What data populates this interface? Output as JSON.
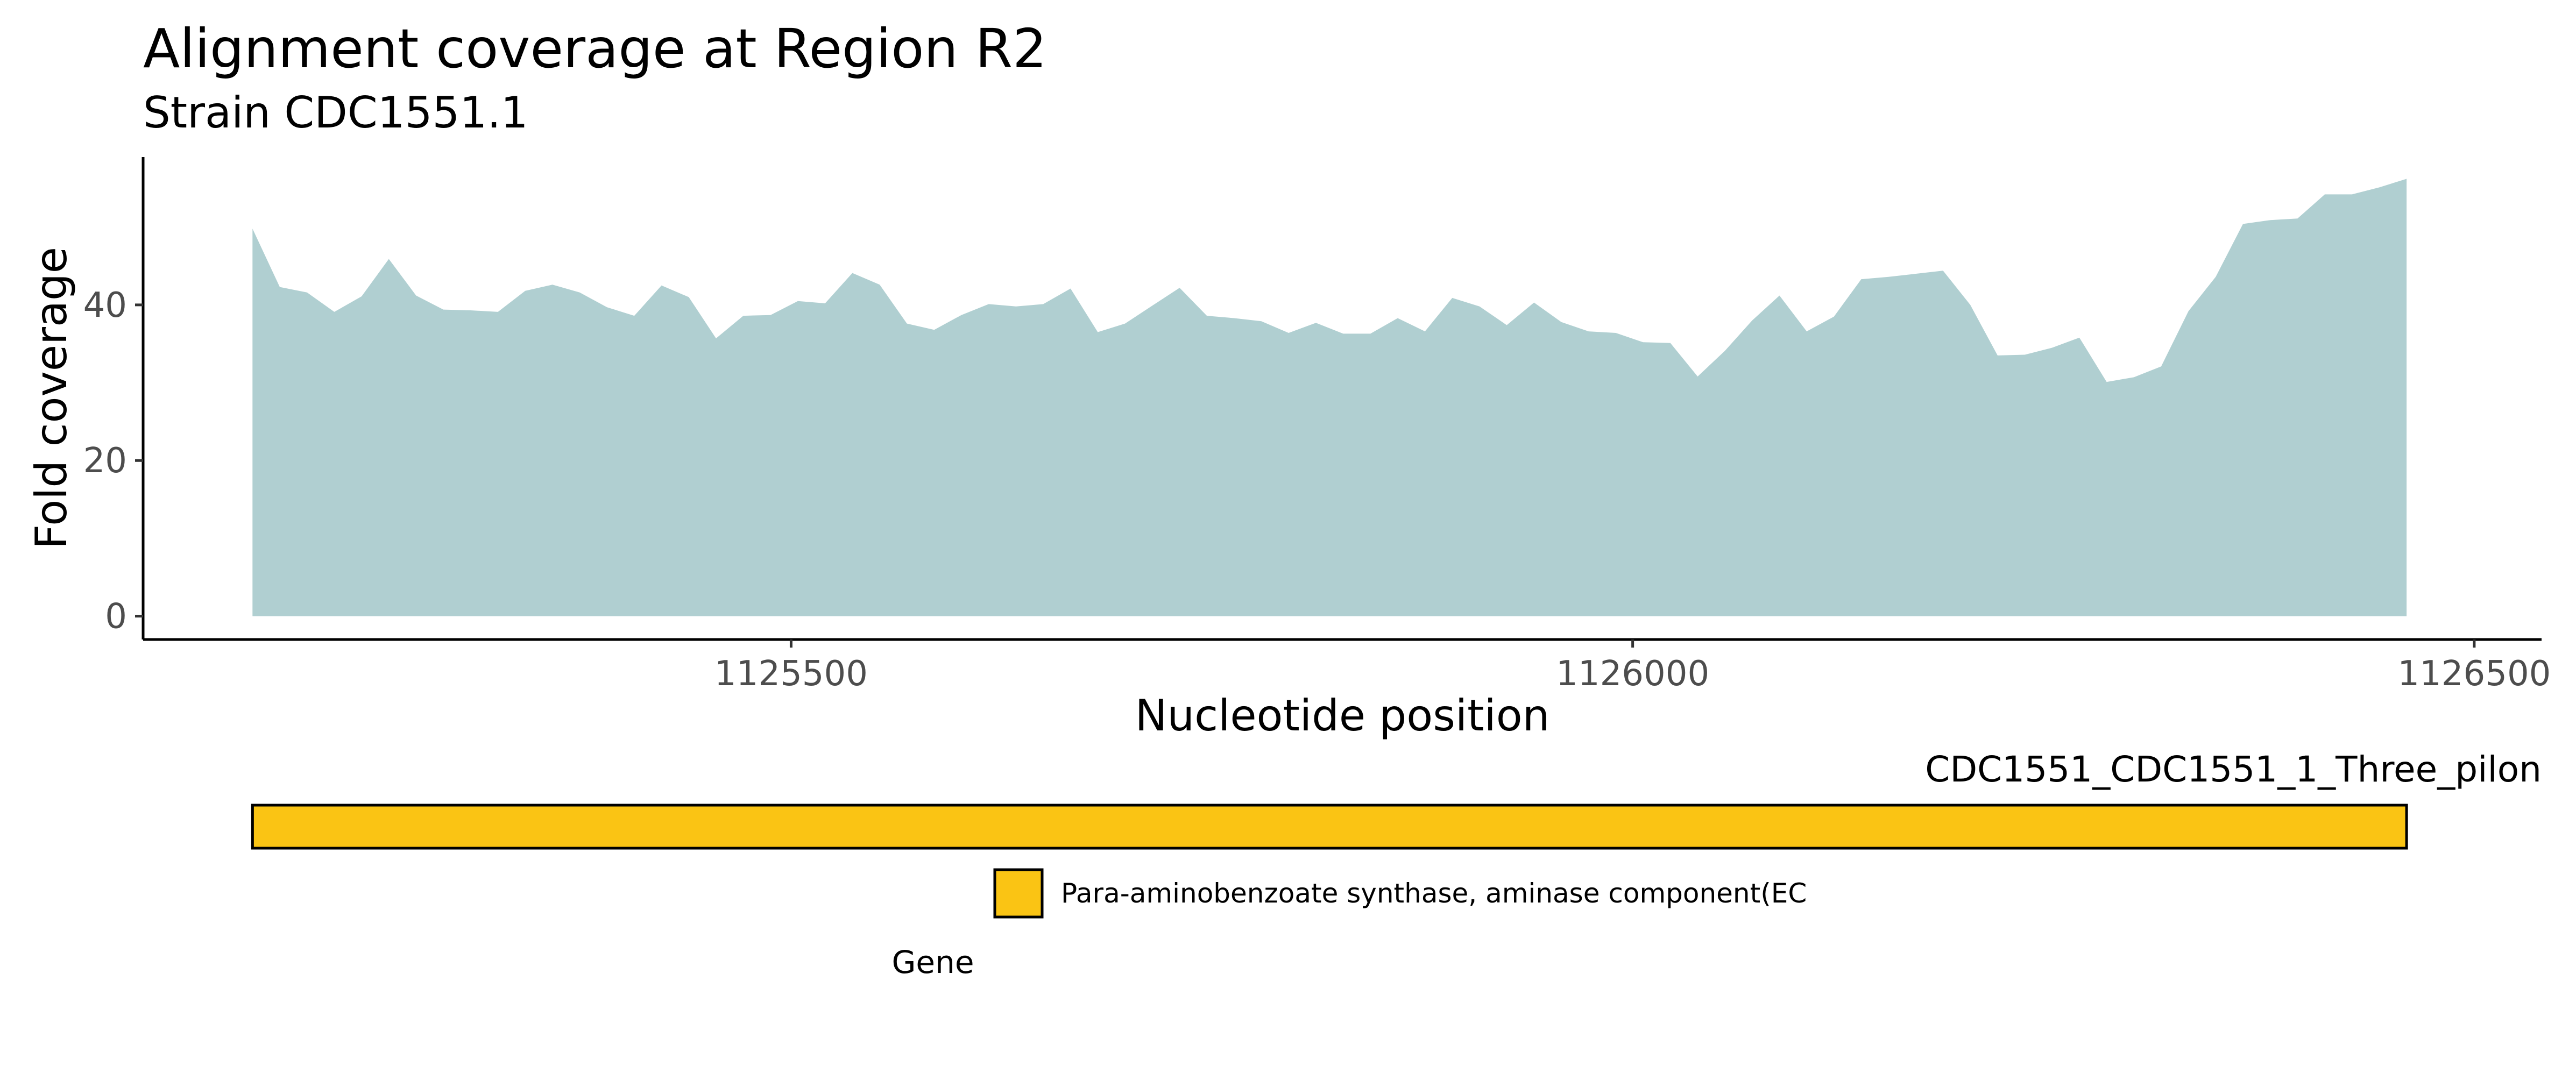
{
  "chart_data": {
    "type": "area",
    "title": "Alignment coverage at Region R2",
    "subtitle": "Strain CDC1551.1",
    "xlabel": "Nucleotide position",
    "ylabel": "Fold coverage",
    "xlim": [
      1125115,
      1126540
    ],
    "ylim": [
      -3,
      59
    ],
    "xticks": [
      1125500,
      1126000,
      1126500
    ],
    "yticks": [
      0,
      20,
      40
    ],
    "x_tick_labels": [
      "1125500",
      "1126000",
      "1126500"
    ],
    "y_tick_labels": [
      "0",
      "20",
      "40"
    ],
    "grid": false,
    "fill_color": "#b0cfd1",
    "x_start": 1125180,
    "x_step": 16.2,
    "series": [
      {
        "values": [
          49.8,
          42.3,
          41.6,
          39.1,
          41.1,
          45.9,
          41.2,
          39.4,
          39.3,
          39.1,
          41.8,
          42.6,
          41.6,
          39.7,
          38.6,
          42.5,
          41.0,
          35.7,
          38.6,
          38.7,
          40.5,
          40.2,
          44.1,
          42.6,
          37.6,
          36.8,
          38.7,
          40.1,
          39.8,
          40.1,
          42.1,
          36.5,
          37.6,
          39.9,
          42.2,
          38.6,
          38.3,
          37.9,
          36.4,
          37.7,
          36.3,
          36.3,
          38.3,
          36.6,
          40.9,
          39.8,
          37.4,
          40.3,
          37.8,
          36.6,
          36.4,
          35.2,
          35.1,
          30.8,
          34.1,
          38.0,
          41.2,
          36.6,
          38.5,
          43.3,
          43.6,
          44.0,
          44.4,
          40.0,
          33.5,
          33.6,
          34.5,
          35.8,
          30.1,
          30.7,
          32.1,
          39.2,
          43.6,
          50.4,
          50.9,
          51.1,
          54.2,
          54.2,
          55.1,
          56.2
        ]
      }
    ]
  },
  "gene_track": {
    "title": "CDC1551_CDC1551_1_Three_pilon",
    "feature": {
      "start": 1125180,
      "end": 1126460,
      "color": "#fac414"
    },
    "legend": {
      "title": "Gene",
      "label": "Para-aminobenzoate synthase, aminase component(EC"
    }
  }
}
